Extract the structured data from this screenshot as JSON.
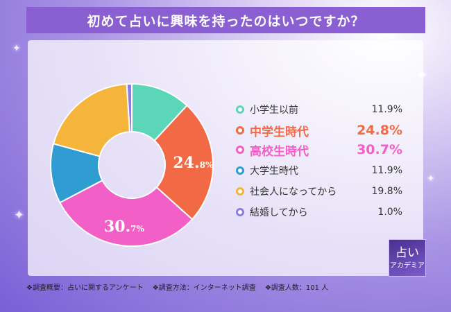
{
  "title": "初めて占いに興味を持ったのはいつですか？",
  "chart_data": {
    "type": "pie",
    "donut": true,
    "series": [
      {
        "name": "小学生以前",
        "value": 11.9,
        "display": "11.9%",
        "color": "#5cd6b8",
        "highlight": false
      },
      {
        "name": "中学生時代",
        "value": 24.8,
        "display": "24.8%",
        "color": "#f26a45",
        "highlight": true
      },
      {
        "name": "高校生時代",
        "value": 30.7,
        "display": "30.7%",
        "color": "#f25fc6",
        "highlight": true
      },
      {
        "name": "大学生時代",
        "value": 11.9,
        "display": "11.9%",
        "color": "#2f9dd1",
        "highlight": false
      },
      {
        "name": "社会人になってから",
        "value": 19.8,
        "display": "19.8%",
        "color": "#f5b43a",
        "highlight": false
      },
      {
        "name": "結婚してから",
        "value": 1.0,
        "display": "1.0%",
        "color": "#8e7de0",
        "highlight": false
      }
    ],
    "slice_labels": [
      {
        "index": 1,
        "main": "24.",
        "sub": "8%"
      },
      {
        "index": 2,
        "main": "30.",
        "sub": "7%"
      }
    ],
    "highlight_color": {
      "1": "#f26a45",
      "2": "#f25fc6"
    }
  },
  "footer": {
    "survey_overview": "❖調査概要：占いに関するアンケート",
    "survey_method": "❖調査方法：インターネット調査",
    "respondents": "❖調査人数：101 人"
  },
  "logo": {
    "line1": "占い",
    "line2": "アカデミア"
  }
}
